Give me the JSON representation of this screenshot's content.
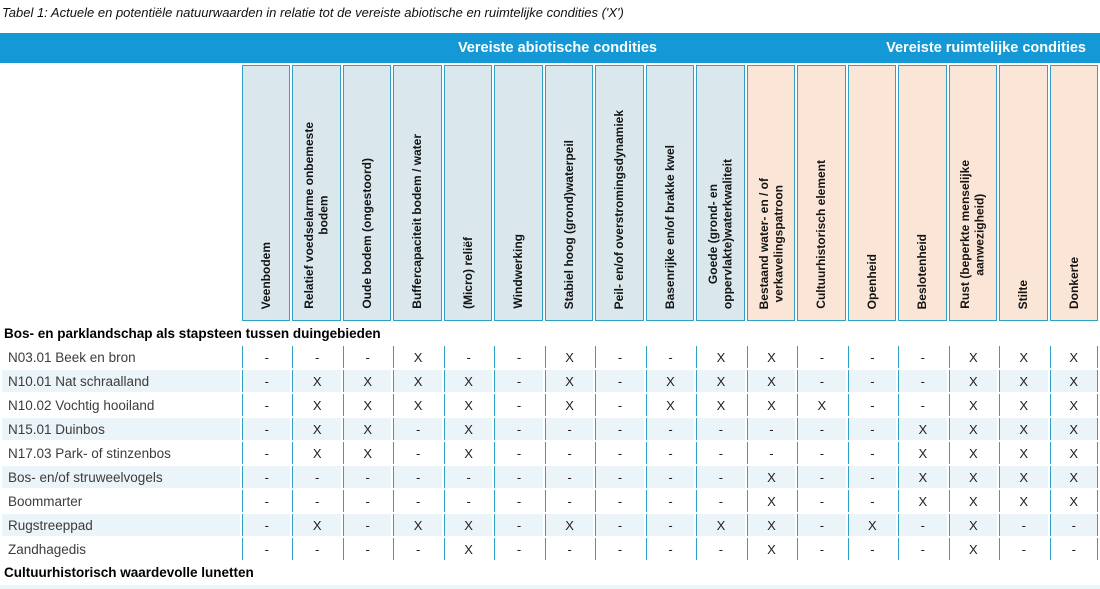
{
  "title": "Tabel 1: Actuele en potentiële natuurwaarden in relatie tot de vereiste abiotische en ruimtelijke condities ('X')",
  "header_groups": [
    {
      "label": "Vereiste abiotische condities",
      "theme": "abiotic",
      "columns": [
        "Veenbodem",
        "Relatief voedselarme onbemeste\nbodem",
        "Oude bodem (ongestoord)",
        "Buffercapaciteit bodem / water",
        "(Micro) reliëf",
        "Windwerking",
        "Stabiel hoog (grond)waterpeil",
        "Peil- en/of overstromingsdynamiek",
        "Basenrijke en/of brakke kwel",
        "Goede (grond- en\noppervlakte)waterkwaliteit"
      ]
    },
    {
      "label": "Vereiste ruimtelijke condities",
      "theme": "spatial",
      "columns": [
        "Bestaand water- en / of\nverkavelingspatroon",
        "Cultuurhistorisch element",
        "Openheid",
        "Beslotenheid",
        "Rust (beperkte menselijke\naanwezigheid)",
        "Stilte",
        "Donkerte"
      ]
    }
  ],
  "sections": [
    {
      "label": "Bos- en parklandschap als stapsteen tussen duingebieden",
      "rows": [
        {
          "label": "N03.01 Beek en bron",
          "values": [
            "-",
            "-",
            "-",
            "X",
            "-",
            "-",
            "X",
            "-",
            "-",
            "X",
            "X",
            "-",
            "-",
            "-",
            "X",
            "X",
            "X"
          ]
        },
        {
          "label": "N10.01 Nat schraalland",
          "values": [
            "-",
            "X",
            "X",
            "X",
            "X",
            "-",
            "X",
            "-",
            "X",
            "X",
            "X",
            "-",
            "-",
            "-",
            "X",
            "X",
            "X"
          ]
        },
        {
          "label": "N10.02 Vochtig hooiland",
          "values": [
            "-",
            "X",
            "X",
            "X",
            "X",
            "-",
            "X",
            "-",
            "X",
            "X",
            "X",
            "X",
            "-",
            "-",
            "X",
            "X",
            "X"
          ]
        },
        {
          "label": "N15.01 Duinbos",
          "values": [
            "-",
            "X",
            "X",
            "-",
            "X",
            "-",
            "-",
            "-",
            "-",
            "-",
            "-",
            "-",
            "-",
            "X",
            "X",
            "X",
            "X"
          ]
        },
        {
          "label": "N17.03 Park- of stinzenbos",
          "values": [
            "-",
            "X",
            "X",
            "-",
            "X",
            "-",
            "-",
            "-",
            "-",
            "-",
            "-",
            "-",
            "-",
            "X",
            "X",
            "X",
            "X"
          ]
        },
        {
          "label": "Bos- en/of struweelvogels",
          "values": [
            "-",
            "-",
            "-",
            "-",
            "-",
            "-",
            "-",
            "-",
            "-",
            "-",
            "X",
            "-",
            "-",
            "X",
            "X",
            "X",
            "X"
          ]
        },
        {
          "label": "Boommarter",
          "values": [
            "-",
            "-",
            "-",
            "-",
            "-",
            "-",
            "-",
            "-",
            "-",
            "-",
            "X",
            "-",
            "-",
            "X",
            "X",
            "X",
            "X"
          ]
        },
        {
          "label": "Rugstreeppad",
          "values": [
            "-",
            "X",
            "-",
            "X",
            "X",
            "-",
            "X",
            "-",
            "-",
            "X",
            "X",
            "-",
            "X",
            "-",
            "X",
            "-",
            "-"
          ]
        },
        {
          "label": "Zandhagedis",
          "values": [
            "-",
            "-",
            "-",
            "-",
            "X",
            "-",
            "-",
            "-",
            "-",
            "-",
            "X",
            "-",
            "-",
            "-",
            "X",
            "-",
            "-"
          ]
        }
      ]
    },
    {
      "label": "Cultuurhistorisch waardevolle lunetten",
      "rows": []
    }
  ],
  "colors": {
    "header_bar": "#1499d6",
    "abiotic_header_bg": "#dae8ed",
    "spatial_header_bg": "#fbe5d6",
    "grid_line": "#2fa0c6",
    "row_stripe": "#eaf4f9"
  }
}
